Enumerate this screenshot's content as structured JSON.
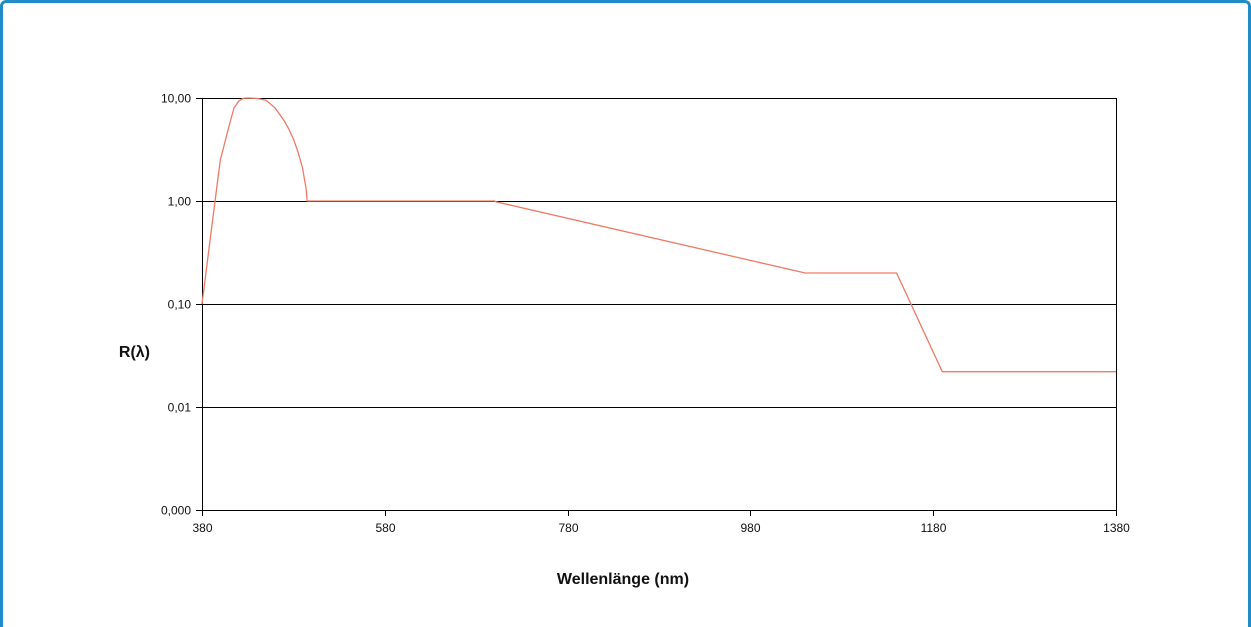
{
  "chart_data": {
    "type": "line",
    "title": "",
    "xlabel": "Wellenlänge (nm)",
    "ylabel": "R(λ)",
    "xlim": [
      380,
      1380
    ],
    "ylim": [
      0.001,
      10
    ],
    "y_scale": "log",
    "x_ticks": [
      380,
      580,
      780,
      980,
      1180,
      1380
    ],
    "x_tick_labels": [
      "380",
      "580",
      "780",
      "980",
      "1180",
      "1380"
    ],
    "y_ticks": [
      0.001,
      0.01,
      0.1,
      1,
      10
    ],
    "y_tick_labels": [
      "0,000",
      "0,01",
      "0,10",
      "1,00",
      "10,00"
    ],
    "grid": "horizontal",
    "series": [
      {
        "color": "#f07a66",
        "x": [
          380,
          390,
          400,
          410,
          415,
          420,
          425,
          430,
          440,
          450,
          460,
          470,
          475,
          480,
          485,
          490,
          494,
          495,
          500,
          550,
          600,
          700,
          702,
          1040,
          1140,
          1190,
          1380
        ],
        "y": [
          0.1,
          0.5,
          2.5,
          5.5,
          8.0,
          9.3,
          9.9,
          10.0,
          9.9,
          9.5,
          8.0,
          6.0,
          5.0,
          4.0,
          3.0,
          2.1,
          1.3,
          1.0,
          1.0,
          1.0,
          1.0,
          1.0,
          0.98,
          0.2,
          0.2,
          0.022,
          0.022
        ]
      }
    ]
  }
}
